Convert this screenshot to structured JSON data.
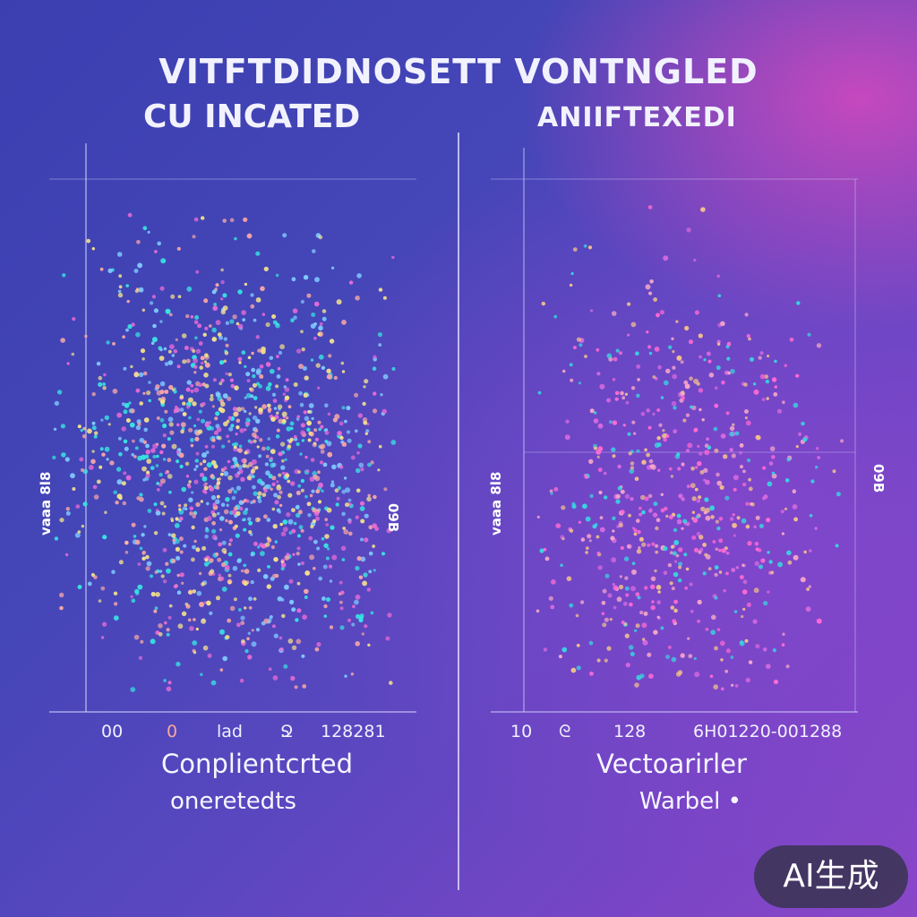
{
  "titles": {
    "main": "VITFTDIDNOSETT VONTNGLED",
    "left": "CU INCATED",
    "right": "ANIIFTEXEDI"
  },
  "chart_data": [
    {
      "type": "scatter",
      "panel": "left",
      "title": "CU INCATED",
      "xlabel": "Conplientcrted",
      "subtitle": "oneretedts",
      "side_labels": [
        "vaaa 8l8",
        "09B"
      ],
      "x_ticks": [
        "00",
        "0",
        "lad",
        "Ջ",
        "128281"
      ],
      "points_per_color": 280,
      "colors": [
        "#38e3e0",
        "#7ec8ff",
        "#f4a6a6",
        "#e56bd6",
        "#f2e08c"
      ],
      "grid": false
    },
    {
      "type": "scatter",
      "panel": "right",
      "title": "ANIIFTEXEDI",
      "xlabel": "Vectoarirler",
      "subtitle": "Warbel •",
      "side_labels": [
        "vaaa 8l8",
        "09B"
      ],
      "x_ticks": [
        "10",
        "ᘓ",
        "128",
        "6H01220-001288"
      ],
      "points_per_color": 140,
      "colors": [
        "#d86ae0",
        "#f6a6c8",
        "#38d6e0",
        "#f2c08c",
        "#ff6ad6"
      ],
      "grid": false
    }
  ],
  "watermark": "AI生成"
}
